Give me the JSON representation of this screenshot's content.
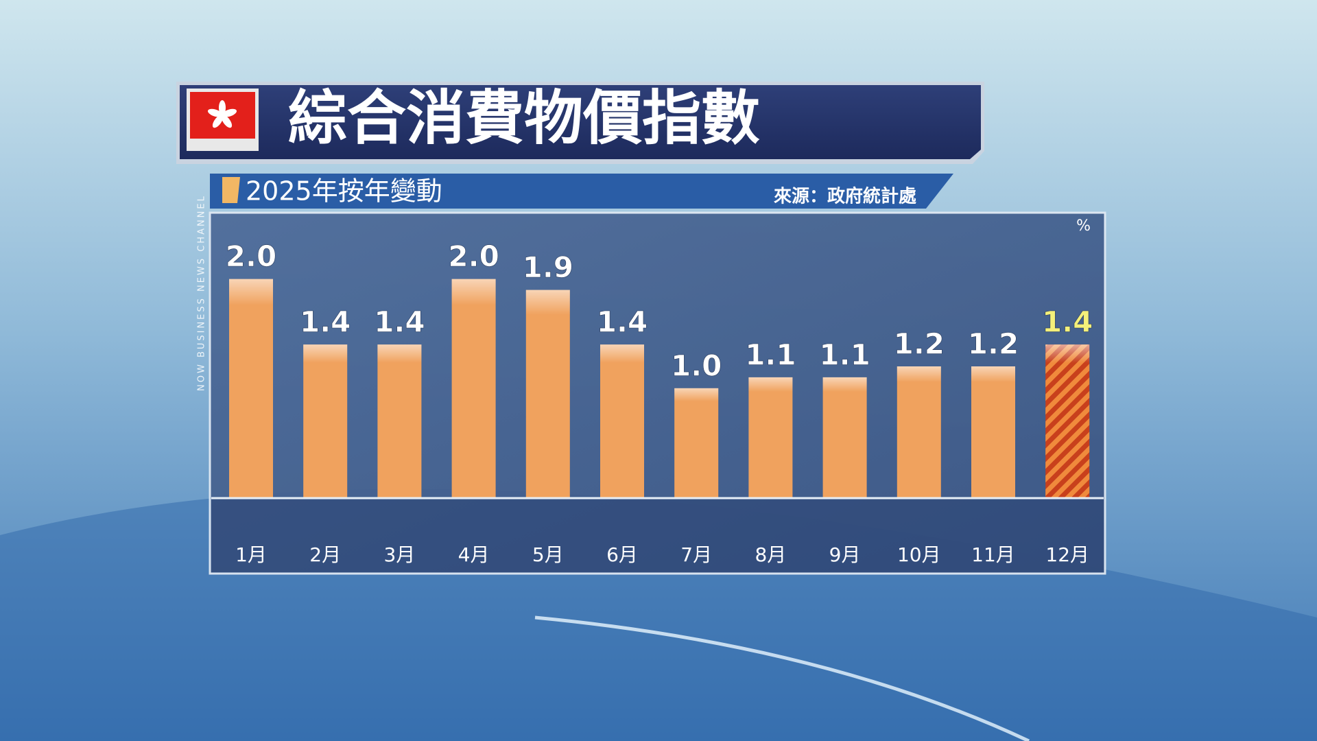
{
  "chart_data": {
    "type": "bar",
    "title": "綜合消費物價指數",
    "subtitle": "2025年按年變動",
    "source": "來源：政府統計處",
    "unit": "%",
    "categories": [
      "1月",
      "2月",
      "3月",
      "4月",
      "5月",
      "6月",
      "7月",
      "8月",
      "9月",
      "10月",
      "11月",
      "12月"
    ],
    "values": [
      2.0,
      1.4,
      1.4,
      2.0,
      1.9,
      1.4,
      1.0,
      1.1,
      1.1,
      1.2,
      1.2,
      1.4
    ],
    "value_labels": [
      "2.0",
      "1.4",
      "1.4",
      "2.0",
      "1.9",
      "1.4",
      "1.0",
      "1.1",
      "1.1",
      "1.2",
      "1.2",
      "1.4"
    ],
    "colors": [
      "#f0a25e",
      "#f0a25e",
      "#f0a25e",
      "#f0a25e",
      "#f0a25e",
      "#f0a25e",
      "#f0a25e",
      "#f0a25e",
      "#f0a25e",
      "#f0a25e",
      "#f0a25e",
      "#c8401c"
    ],
    "hatched": [
      false,
      false,
      false,
      false,
      false,
      false,
      false,
      false,
      false,
      false,
      false,
      true
    ],
    "label_colors": [
      "#ffffff",
      "#ffffff",
      "#ffffff",
      "#ffffff",
      "#ffffff",
      "#ffffff",
      "#ffffff",
      "#ffffff",
      "#ffffff",
      "#ffffff",
      "#ffffff",
      "#f4f07a"
    ],
    "ylim": [
      0,
      2.4
    ]
  },
  "channel": "NOW BUSINESS NEWS CHANNEL"
}
